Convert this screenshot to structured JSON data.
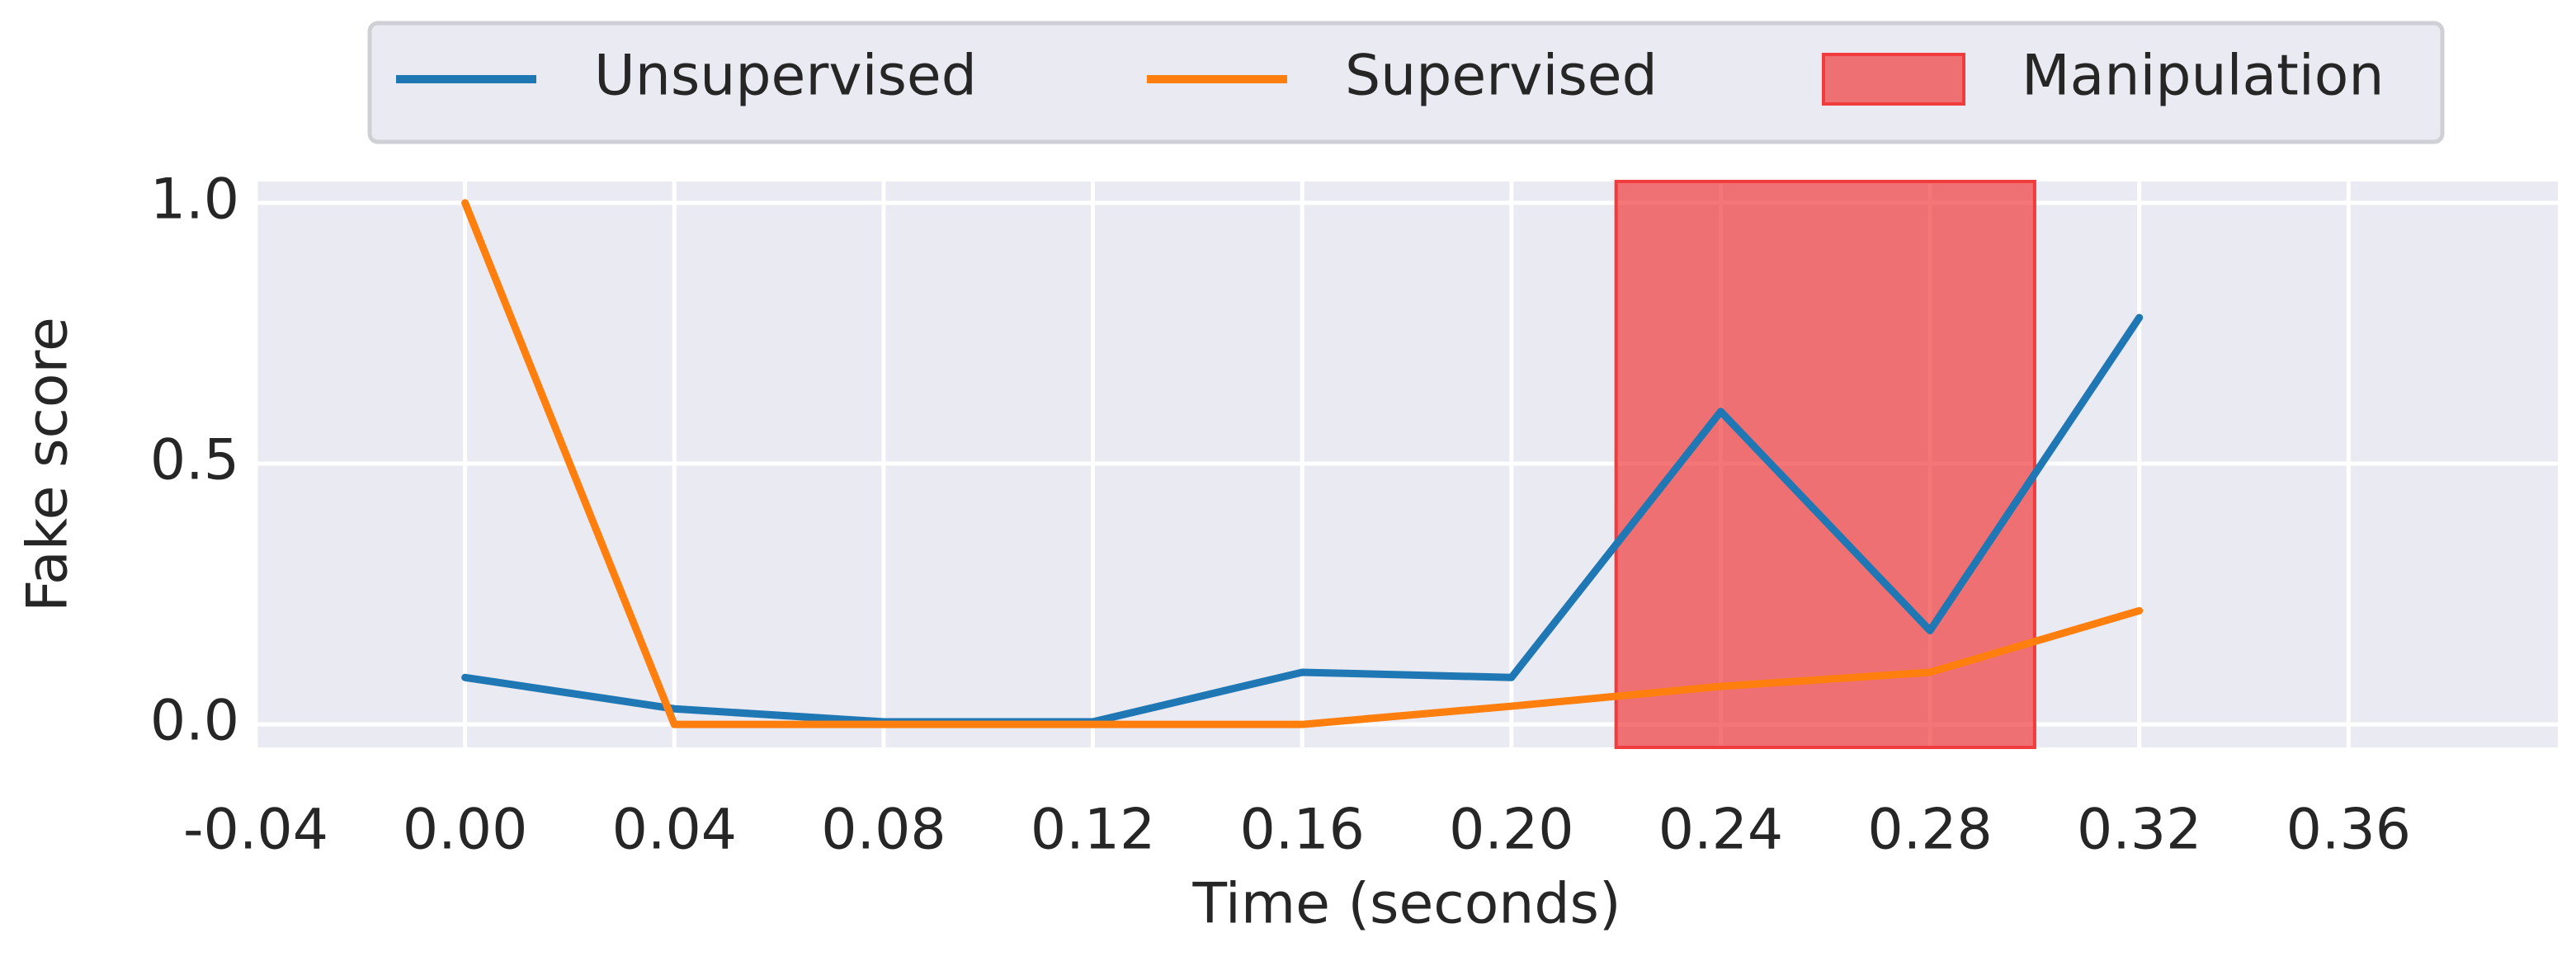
{
  "chart_data": {
    "type": "line",
    "x_label": "Time (seconds)",
    "y_label": "Fake score",
    "x": [
      0,
      0.04,
      0.08,
      0.12,
      0.16,
      0.2,
      0.24,
      0.28,
      0.32
    ],
    "series": [
      {
        "name": "Unsupervised",
        "color": "#1f77b4",
        "values": [
          0.09,
          0.03,
          0.005,
          0.005,
          0.1,
          0.09,
          0.6,
          0.18,
          0.78
        ]
      },
      {
        "name": "Supervised",
        "color": "#ff7f0e",
        "values": [
          1.0,
          0.0,
          0.0,
          0.0,
          0.0,
          0.035,
          0.073,
          0.1,
          0.218
        ]
      }
    ],
    "spans": [
      {
        "name": "Manipulation",
        "x": [
          0.22,
          0.3
        ],
        "color": "#f03c3c"
      }
    ],
    "xlim": [
      -0.04,
      0.4
    ],
    "ylim": [
      -0.044,
      1.041
    ],
    "xticks": [
      -0.04,
      {
        "value": 0,
        "label": "0.00"
      },
      0.04,
      0.08,
      0.12,
      0.16,
      {
        "value": 0.2,
        "label": "0.20"
      },
      0.24,
      0.28,
      0.32,
      0.36
    ],
    "yticks": [
      {
        "value": 0,
        "label": "0.0"
      },
      0.5,
      {
        "value": 1,
        "label": "1.0"
      }
    ],
    "grid": true,
    "legend": "top"
  }
}
